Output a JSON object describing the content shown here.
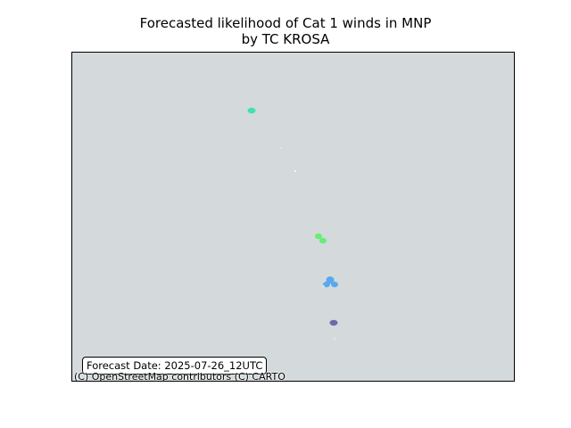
{
  "title": {
    "line1": "Forecasted likelihood of Cat 1 winds in MNP",
    "line2": "by TC KROSA"
  },
  "map": {
    "background_color": "#d4dadc",
    "forecast_label": "Forecast Date: 2025-07-26_12UTC",
    "attribution": "(C) OpenStreetMap contributors (C) CARTO",
    "colors": {
      "north_island": "#40e0b0",
      "middle_island": "#66ee77",
      "south_cluster": "#5aa9f0",
      "southernmost": "#6a6aa8",
      "small_islet": "#f0f4f4"
    }
  }
}
